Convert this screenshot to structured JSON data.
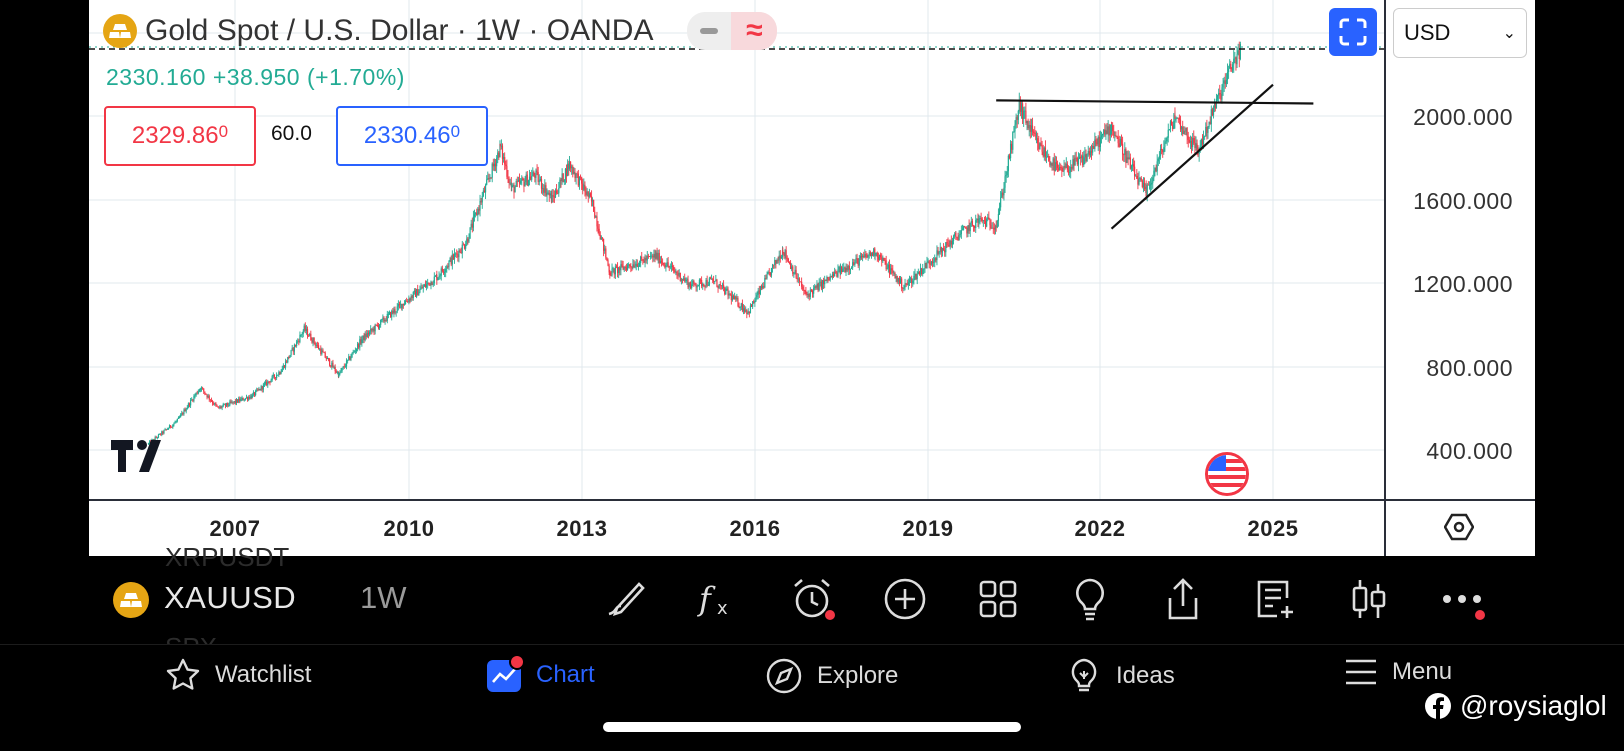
{
  "header": {
    "title": "Gold Spot / U.S. Dollar · 1W · OANDA",
    "ohlc_text": "2330.160  +38.950 (+1.70%)",
    "sell_price": "2329.86",
    "sell_price_small": "0",
    "spread": "60.0",
    "buy_price": "2330.46",
    "buy_price_small": "0",
    "currency": "USD"
  },
  "price_scale": {
    "labels": [
      "2000.000",
      "1600.000",
      "1200.000",
      "800.000",
      "400.000"
    ]
  },
  "time_scale": {
    "labels": [
      "2007",
      "2010",
      "2013",
      "2016",
      "2019",
      "2022",
      "2025"
    ]
  },
  "toolbar": {
    "symbol": "XAUUSD",
    "timeframe": "1W",
    "ghost_above": "XRPUSDT",
    "ghost_below": "SPX"
  },
  "nav": {
    "watchlist": "Watchlist",
    "chart": "Chart",
    "explore": "Explore",
    "ideas": "Ideas",
    "menu": "Menu"
  },
  "watermark": "@roysiaglol",
  "colors": {
    "up": "#22ab94",
    "down": "#f23645",
    "accent": "#2962ff",
    "gold": "#e5a514"
  },
  "chart_data": {
    "type": "candlestick",
    "y_range": [
      200,
      2500
    ],
    "x_labels": [
      "2007",
      "2010",
      "2013",
      "2016",
      "2019",
      "2022",
      "2025"
    ],
    "price_path": [
      [
        "2005.5",
        430
      ],
      [
        "2006.0",
        540
      ],
      [
        "2006.4",
        700
      ],
      [
        "2006.7",
        600
      ],
      [
        "2007.3",
        660
      ],
      [
        "2007.8",
        780
      ],
      [
        "2008.2",
        980
      ],
      [
        "2008.8",
        760
      ],
      [
        "2009.2",
        930
      ],
      [
        "2009.9",
        1100
      ],
      [
        "2010.5",
        1230
      ],
      [
        "2011.0",
        1390
      ],
      [
        "2011.6",
        1850
      ],
      [
        "2011.8",
        1650
      ],
      [
        "2012.2",
        1720
      ],
      [
        "2012.5",
        1600
      ],
      [
        "2012.8",
        1770
      ],
      [
        "2013.2",
        1580
      ],
      [
        "2013.5",
        1250
      ],
      [
        "2013.9",
        1290
      ],
      [
        "2014.3",
        1330
      ],
      [
        "2014.9",
        1190
      ],
      [
        "2015.3",
        1210
      ],
      [
        "2015.9",
        1060
      ],
      [
        "2016.5",
        1360
      ],
      [
        "2016.9",
        1140
      ],
      [
        "2017.5",
        1260
      ],
      [
        "2018.1",
        1350
      ],
      [
        "2018.6",
        1180
      ],
      [
        "2019.0",
        1290
      ],
      [
        "2019.5",
        1420
      ],
      [
        "2019.9",
        1500
      ],
      [
        "2020.2",
        1480
      ],
      [
        "2020.6",
        2050
      ],
      [
        "2020.9",
        1870
      ],
      [
        "2021.3",
        1730
      ],
      [
        "2021.7",
        1790
      ],
      [
        "2022.2",
        1950
      ],
      [
        "2022.6",
        1720
      ],
      [
        "2022.8",
        1630
      ],
      [
        "2023.3",
        2000
      ],
      [
        "2023.7",
        1830
      ],
      [
        "2024.0",
        2050
      ],
      [
        "2024.3",
        2250
      ],
      [
        "2024.45",
        2330
      ]
    ],
    "last_price": 2330.16,
    "drawings": [
      {
        "type": "horizontal",
        "x": [
          "2020.2",
          "2025.7"
        ],
        "y": [
          2075,
          2060
        ]
      },
      {
        "type": "trendline",
        "x": [
          "2022.2",
          "2025.0"
        ],
        "y": [
          1460,
          2150
        ]
      }
    ]
  }
}
